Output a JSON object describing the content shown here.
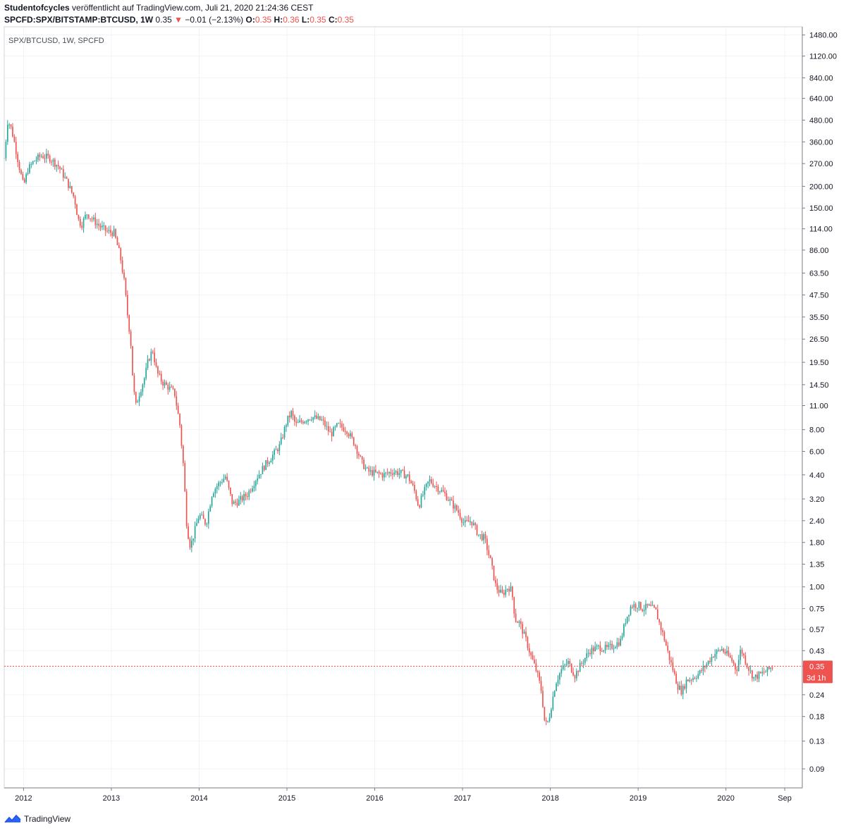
{
  "header": {
    "author": "Studentofcycles",
    "published": "veröffentlicht auf TradingView.com, Juli 21, 2020 21:24:36 CEST",
    "symbol": "SPCFD:SPX/BITSTAMP:BTCUSD, 1W",
    "last": "0.35",
    "change_arrow": "▼",
    "change": "−0.01 (−2.13%)",
    "o_label": "O:",
    "o": "0.35",
    "h_label": "H:",
    "h": "0.36",
    "l_label": "L:",
    "l": "0.35",
    "c_label": "C:",
    "c": "0.35"
  },
  "pane_label": "SPX/BTCUSD, 1W, SPCFD",
  "price_tag": {
    "value": "0.35",
    "countdown": "3d 1h"
  },
  "footer": {
    "brand": "TradingView"
  },
  "colors": {
    "up": "#26a69a",
    "down": "#ef5350",
    "grid": "#f0f3fa",
    "axis_text": "#131722",
    "price_line": "#ef5350"
  },
  "chart_data": {
    "type": "candlestick",
    "title": "SPX/BTCUSD, 1W, SPCFD",
    "yscale": "log",
    "ylim": [
      0.07,
      1650
    ],
    "grid": true,
    "yticks": [
      1480,
      1120,
      840,
      640,
      480,
      360,
      270,
      200,
      150,
      114,
      86,
      63.5,
      47.5,
      35.5,
      26.5,
      19.5,
      14.5,
      11,
      8,
      6,
      4.4,
      3.2,
      2.4,
      1.8,
      1.35,
      1.0,
      0.75,
      0.57,
      0.43,
      0.35,
      0.24,
      0.18,
      0.13,
      0.09
    ],
    "ytick_labels": [
      "1480.00",
      "1120.00",
      "840.00",
      "640.00",
      "480.00",
      "360.00",
      "270.00",
      "200.00",
      "150.00",
      "114.00",
      "86.00",
      "63.50",
      "47.50",
      "35.50",
      "26.50",
      "19.50",
      "14.50",
      "11.00",
      "8.00",
      "6.00",
      "4.40",
      "3.20",
      "2.40",
      "1.80",
      "1.35",
      "1.00",
      "0.75",
      "0.57",
      "0.43",
      "0.35",
      "0.24",
      "0.18",
      "0.13",
      "0.09"
    ],
    "xticks": [
      2012,
      2013,
      2014,
      2015,
      2016,
      2017,
      2018,
      2019,
      2020,
      2020.67
    ],
    "xtick_labels": [
      "2012",
      "2013",
      "2014",
      "2015",
      "2016",
      "2017",
      "2018",
      "2019",
      "2020",
      "Sep"
    ],
    "xlim": [
      2011.78,
      2020.87
    ],
    "last_value": 0.35,
    "close_path": [
      [
        2011.78,
        290
      ],
      [
        2011.82,
        480
      ],
      [
        2011.86,
        430
      ],
      [
        2011.9,
        350
      ],
      [
        2011.95,
        260
      ],
      [
        2012.0,
        200
      ],
      [
        2012.05,
        250
      ],
      [
        2012.12,
        280
      ],
      [
        2012.2,
        300
      ],
      [
        2012.3,
        290
      ],
      [
        2012.4,
        260
      ],
      [
        2012.5,
        210
      ],
      [
        2012.58,
        170
      ],
      [
        2012.62,
        130
      ],
      [
        2012.66,
        120
      ],
      [
        2012.72,
        140
      ],
      [
        2012.78,
        130
      ],
      [
        2012.85,
        120
      ],
      [
        2012.95,
        110
      ],
      [
        2013.03,
        108
      ],
      [
        2013.1,
        80
      ],
      [
        2013.15,
        55
      ],
      [
        2013.18,
        38
      ],
      [
        2013.22,
        26
      ],
      [
        2013.25,
        14
      ],
      [
        2013.28,
        11
      ],
      [
        2013.32,
        13
      ],
      [
        2013.38,
        16
      ],
      [
        2013.42,
        20
      ],
      [
        2013.47,
        23
      ],
      [
        2013.52,
        17
      ],
      [
        2013.58,
        15
      ],
      [
        2013.65,
        14
      ],
      [
        2013.72,
        13
      ],
      [
        2013.78,
        8.5
      ],
      [
        2013.82,
        5
      ],
      [
        2013.86,
        2.2
      ],
      [
        2013.9,
        1.7
      ],
      [
        2013.95,
        2.1
      ],
      [
        2014.0,
        2.6
      ],
      [
        2014.08,
        2.3
      ],
      [
        2014.15,
        3.5
      ],
      [
        2014.22,
        3.9
      ],
      [
        2014.3,
        4.3
      ],
      [
        2014.38,
        3.0
      ],
      [
        2014.45,
        3.1
      ],
      [
        2014.55,
        3.4
      ],
      [
        2014.65,
        4.2
      ],
      [
        2014.75,
        5.0
      ],
      [
        2014.85,
        5.8
      ],
      [
        2014.92,
        6.5
      ],
      [
        2015.0,
        9.0
      ],
      [
        2015.05,
        10.0
      ],
      [
        2015.1,
        8.5
      ],
      [
        2015.18,
        9.0
      ],
      [
        2015.28,
        9.5
      ],
      [
        2015.4,
        9.0
      ],
      [
        2015.5,
        7.5
      ],
      [
        2015.58,
        8.5
      ],
      [
        2015.68,
        8.0
      ],
      [
        2015.78,
        6.5
      ],
      [
        2015.85,
        5.2
      ],
      [
        2015.92,
        4.6
      ],
      [
        2016.0,
        4.5
      ],
      [
        2016.1,
        4.4
      ],
      [
        2016.2,
        4.6
      ],
      [
        2016.3,
        4.5
      ],
      [
        2016.38,
        4.3
      ],
      [
        2016.45,
        3.6
      ],
      [
        2016.5,
        2.9
      ],
      [
        2016.55,
        3.4
      ],
      [
        2016.62,
        4.1
      ],
      [
        2016.72,
        3.7
      ],
      [
        2016.8,
        3.4
      ],
      [
        2016.88,
        3.0
      ],
      [
        2016.95,
        2.7
      ],
      [
        2017.02,
        2.3
      ],
      [
        2017.1,
        2.4
      ],
      [
        2017.18,
        2.0
      ],
      [
        2017.25,
        1.9
      ],
      [
        2017.32,
        1.4
      ],
      [
        2017.38,
        1.0
      ],
      [
        2017.45,
        0.9
      ],
      [
        2017.52,
        1.0
      ],
      [
        2017.56,
        0.95
      ],
      [
        2017.6,
        0.65
      ],
      [
        2017.65,
        0.62
      ],
      [
        2017.72,
        0.5
      ],
      [
        2017.78,
        0.4
      ],
      [
        2017.85,
        0.32
      ],
      [
        2017.9,
        0.25
      ],
      [
        2017.94,
        0.16
      ],
      [
        2017.98,
        0.17
      ],
      [
        2018.02,
        0.22
      ],
      [
        2018.06,
        0.28
      ],
      [
        2018.12,
        0.33
      ],
      [
        2018.2,
        0.37
      ],
      [
        2018.28,
        0.31
      ],
      [
        2018.35,
        0.36
      ],
      [
        2018.45,
        0.43
      ],
      [
        2018.55,
        0.45
      ],
      [
        2018.65,
        0.44
      ],
      [
        2018.72,
        0.46
      ],
      [
        2018.8,
        0.49
      ],
      [
        2018.86,
        0.65
      ],
      [
        2018.92,
        0.78
      ],
      [
        2019.0,
        0.79
      ],
      [
        2019.05,
        0.75
      ],
      [
        2019.12,
        0.77
      ],
      [
        2019.2,
        0.73
      ],
      [
        2019.25,
        0.6
      ],
      [
        2019.3,
        0.5
      ],
      [
        2019.35,
        0.4
      ],
      [
        2019.4,
        0.33
      ],
      [
        2019.45,
        0.27
      ],
      [
        2019.5,
        0.25
      ],
      [
        2019.55,
        0.29
      ],
      [
        2019.62,
        0.3
      ],
      [
        2019.7,
        0.32
      ],
      [
        2019.78,
        0.36
      ],
      [
        2019.86,
        0.41
      ],
      [
        2019.95,
        0.44
      ],
      [
        2020.03,
        0.4
      ],
      [
        2020.08,
        0.37
      ],
      [
        2020.12,
        0.33
      ],
      [
        2020.17,
        0.44
      ],
      [
        2020.22,
        0.38
      ],
      [
        2020.27,
        0.33
      ],
      [
        2020.32,
        0.3
      ],
      [
        2020.37,
        0.31
      ],
      [
        2020.42,
        0.32
      ],
      [
        2020.47,
        0.33
      ],
      [
        2020.53,
        0.35
      ]
    ]
  }
}
